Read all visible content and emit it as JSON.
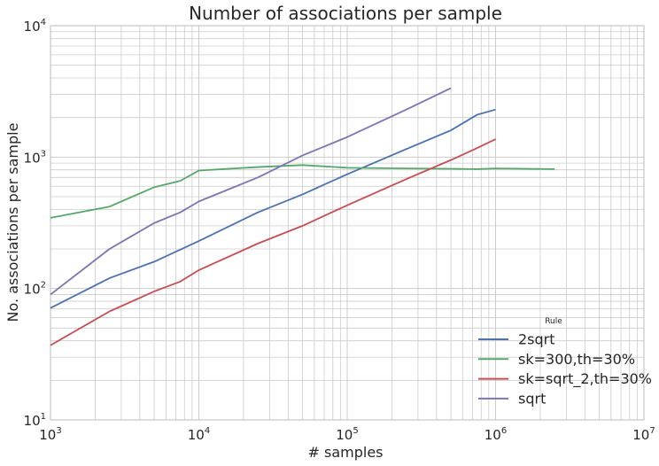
{
  "chart_data": {
    "type": "line",
    "title": "Number of associations per sample",
    "xlabel": "# samples",
    "ylabel": "No. associations per sample",
    "xscale": "log",
    "yscale": "log",
    "xlim": [
      1000,
      10000000
    ],
    "ylim": [
      10,
      10000
    ],
    "grid": true,
    "x_ticks": [
      {
        "base": "10",
        "exp": "3",
        "value": 1000
      },
      {
        "base": "10",
        "exp": "4",
        "value": 10000
      },
      {
        "base": "10",
        "exp": "5",
        "value": 100000
      },
      {
        "base": "10",
        "exp": "6",
        "value": 1000000
      },
      {
        "base": "10",
        "exp": "7",
        "value": 10000000
      }
    ],
    "y_ticks": [
      {
        "base": "10",
        "exp": "1",
        "value": 10
      },
      {
        "base": "10",
        "exp": "2",
        "value": 100
      },
      {
        "base": "10",
        "exp": "3",
        "value": 1000
      },
      {
        "base": "10",
        "exp": "4",
        "value": 10000
      }
    ],
    "legend": {
      "title": "Rule",
      "placement": "lower-right"
    },
    "series": [
      {
        "name": "2sqrt",
        "color": "#4c72b0",
        "points": [
          [
            1000,
            71
          ],
          [
            2500,
            120
          ],
          [
            5000,
            160
          ],
          [
            10000,
            230
          ],
          [
            25000,
            380
          ],
          [
            50000,
            520
          ],
          [
            75000,
            640
          ],
          [
            100000,
            740
          ],
          [
            250000,
            1150
          ],
          [
            500000,
            1600
          ],
          [
            750000,
            2100
          ],
          [
            1000000,
            2300
          ]
        ]
      },
      {
        "name": "sk=300,th=30%",
        "color": "#55a868",
        "points": [
          [
            1000,
            345
          ],
          [
            2500,
            420
          ],
          [
            5000,
            590
          ],
          [
            7500,
            660
          ],
          [
            10000,
            790
          ],
          [
            25000,
            840
          ],
          [
            50000,
            870
          ],
          [
            100000,
            830
          ],
          [
            250000,
            820
          ],
          [
            500000,
            815
          ],
          [
            750000,
            810
          ],
          [
            1000000,
            820
          ],
          [
            2500000,
            810
          ]
        ]
      },
      {
        "name": "sk=sqrt_2,th=30%",
        "color": "#c44e52",
        "points": [
          [
            1000,
            37
          ],
          [
            2500,
            67
          ],
          [
            5000,
            95
          ],
          [
            7500,
            113
          ],
          [
            10000,
            138
          ],
          [
            25000,
            220
          ],
          [
            50000,
            300
          ],
          [
            100000,
            430
          ],
          [
            250000,
            680
          ],
          [
            500000,
            950
          ],
          [
            750000,
            1170
          ],
          [
            1000000,
            1370
          ]
        ]
      },
      {
        "name": "sqrt",
        "color": "#8172b2",
        "points": [
          [
            1000,
            90
          ],
          [
            2500,
            200
          ],
          [
            5000,
            315
          ],
          [
            7500,
            380
          ],
          [
            10000,
            460
          ],
          [
            25000,
            700
          ],
          [
            50000,
            1030
          ],
          [
            100000,
            1420
          ],
          [
            250000,
            2300
          ],
          [
            500000,
            3350
          ]
        ]
      }
    ]
  }
}
